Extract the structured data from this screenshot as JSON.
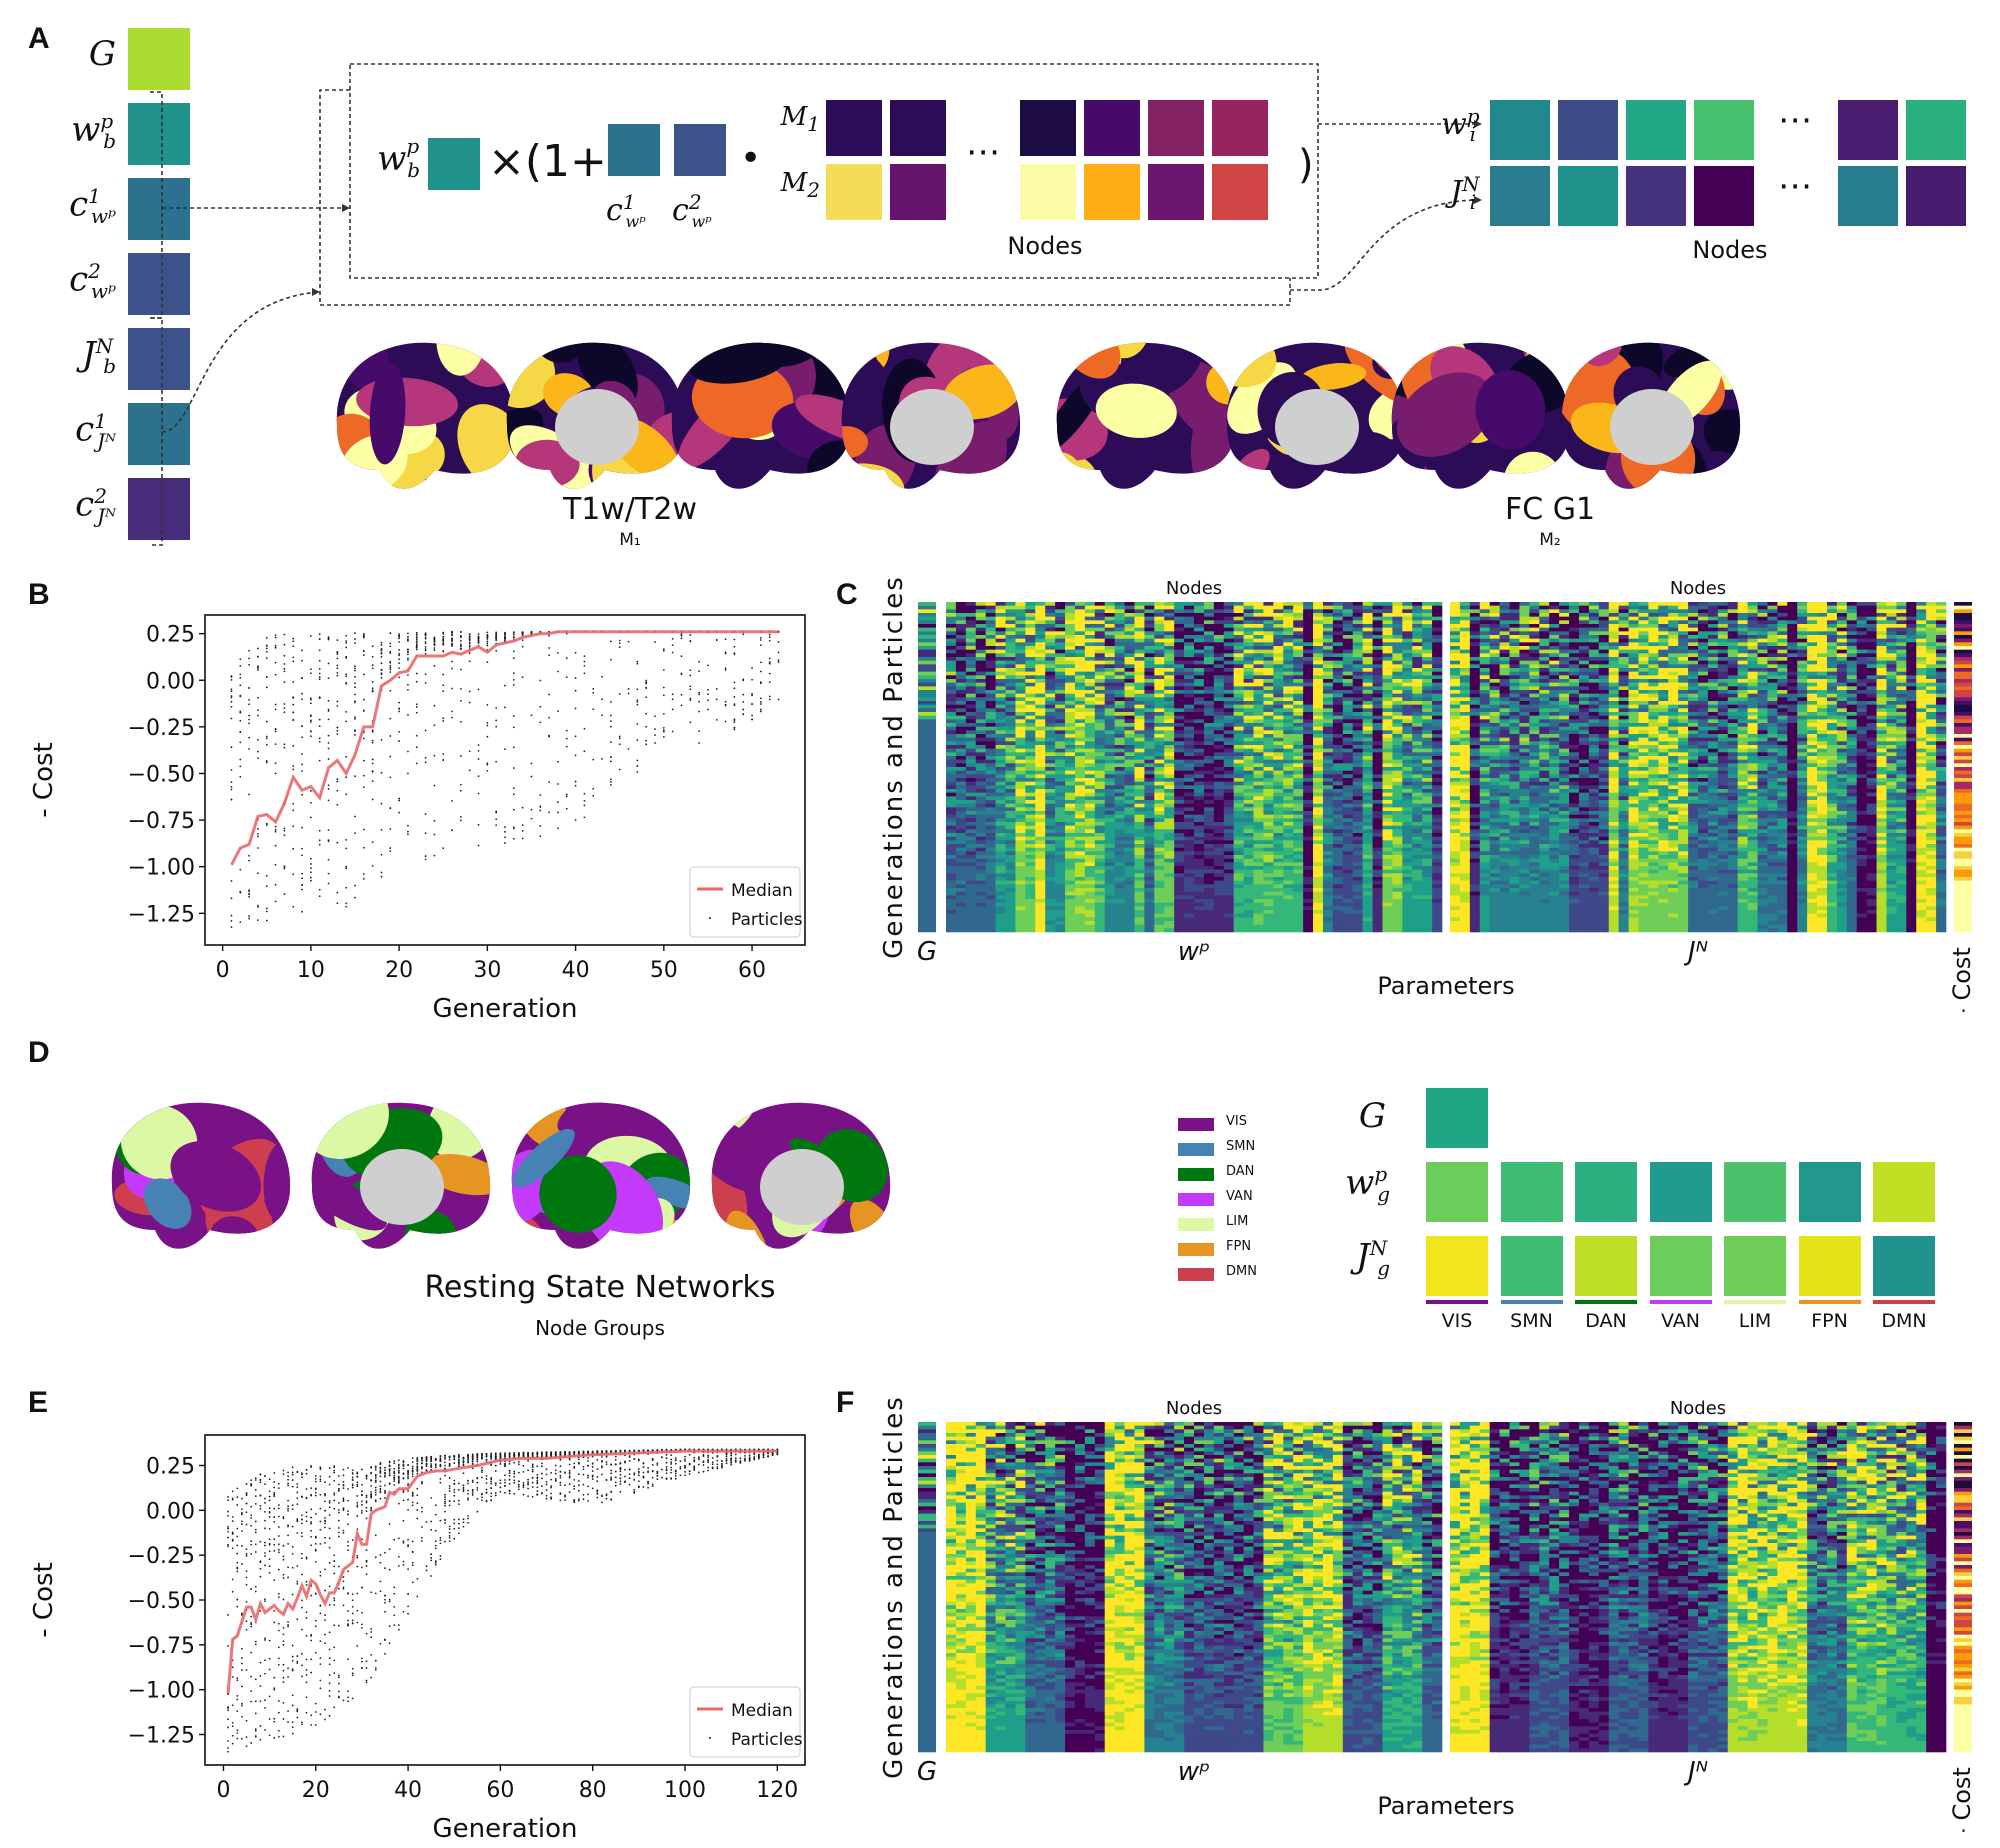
{
  "panels": {
    "A": {
      "letter": "A",
      "params": [
        {
          "label": "G",
          "sub": "",
          "sup": "",
          "color": "#addc30"
        },
        {
          "label": "w",
          "sub": "b",
          "sup": "p",
          "color": "#21918c"
        },
        {
          "label": "c",
          "sub": "wᵖ",
          "sup": "1",
          "color": "#2c728e"
        },
        {
          "label": "c",
          "sub": "wᵖ",
          "sup": "2",
          "color": "#3b528b"
        },
        {
          "label": "J",
          "sub": "b",
          "sup": "N",
          "color": "#3b528b"
        },
        {
          "label": "c",
          "sub": "Jᴺ",
          "sup": "1",
          "color": "#2c728e"
        },
        {
          "label": "c",
          "sub": "Jᴺ",
          "sup": "2",
          "color": "#472c7a"
        }
      ],
      "equation": {
        "wb_label": "w",
        "wb_sub": "b",
        "wb_sup": "p",
        "wb_color": "#21918c",
        "times_text": "×(1+",
        "c1_color": "#2c728e",
        "c2_color": "#3b528b",
        "c1_label": "c",
        "c1_sup": "1",
        "c1_sub": "wᵖ",
        "c2_label": "c",
        "c2_sup": "2",
        "c2_sub": "wᵖ",
        "dot": "•",
        "m1_label": "M",
        "m1_sub": "1",
        "m2_label": "M",
        "m2_sub": "2",
        "m1_colors": [
          "#2c0b57",
          "#2c0b57",
          "#1d0c44",
          "#460b6a",
          "#832163",
          "#952461"
        ],
        "m2_colors": [
          "#f4dd56",
          "#65156e",
          "#fbfba5",
          "#fcae12",
          "#6b176e",
          "#d04545"
        ],
        "ellipsis": "⋯",
        "close_paren": ")",
        "nodes_label": "Nodes"
      },
      "output": {
        "wi_label": "w",
        "wi_sub": "i",
        "wi_sup": "p",
        "ji_label": "J",
        "ji_sub": "i",
        "ji_sup": "N",
        "wi_colors": [
          "#21898d",
          "#3d4b88",
          "#22a884",
          "#48c16e",
          "#481d6f",
          "#2ab07f"
        ],
        "ji_colors": [
          "#287c8e",
          "#20938c",
          "#46337e",
          "#440154",
          "#277f8e",
          "#471c6e"
        ],
        "ellipsis": "⋯",
        "nodes_label": "Nodes"
      },
      "maps": [
        {
          "title": "T1w/T2w",
          "subtitle": "M₁"
        },
        {
          "title": "FC G1",
          "subtitle": "M₂"
        }
      ]
    },
    "B": {
      "letter": "B"
    },
    "C": {
      "letter": "C",
      "nodes_left": "Nodes",
      "nodes_right": "Nodes",
      "ylabel": "Generations and Particles",
      "g_label": "G",
      "wp_label": "wᵖ",
      "jn_label": "Jᴺ",
      "xlabel": "Parameters",
      "cost_label": "- Cost"
    },
    "D": {
      "letter": "D",
      "title": "Resting State Networks",
      "subtitle": "Node Groups",
      "networks": [
        {
          "name": "VIS",
          "color": "#781286"
        },
        {
          "name": "SMN",
          "color": "#4682b4"
        },
        {
          "name": "DAN",
          "color": "#00760e"
        },
        {
          "name": "VAN",
          "color": "#c43afa"
        },
        {
          "name": "LIM",
          "color": "#dcf8a4"
        },
        {
          "name": "FPN",
          "color": "#e69422"
        },
        {
          "name": "DMN",
          "color": "#cd3e4e"
        }
      ],
      "group_params": {
        "g_label": "G",
        "g_color": "#21a685",
        "wg_label": "w",
        "wg_sub": "g",
        "wg_sup": "p",
        "jg_label": "J",
        "jg_sub": "g",
        "jg_sup": "N",
        "wg_colors": [
          "#6ccd5a",
          "#3dbc74",
          "#2aaf7f",
          "#21998b",
          "#4ac16d",
          "#21988b",
          "#c2df23"
        ],
        "jg_colors": [
          "#f1e51d",
          "#3dbc74",
          "#bddf26",
          "#6ccd5a",
          "#6ece58",
          "#e5e419",
          "#20938c"
        ]
      }
    },
    "E": {
      "letter": "E"
    },
    "F": {
      "letter": "F",
      "nodes_left": "Nodes",
      "nodes_right": "Nodes",
      "ylabel": "Generations and Particles",
      "g_label": "G",
      "wp_label": "wᵖ",
      "jn_label": "Jᴺ",
      "xlabel": "Parameters",
      "cost_label": "- Cost"
    }
  },
  "chart_data": [
    {
      "id": "B",
      "type": "scatter",
      "title": "",
      "xlabel": "Generation",
      "ylabel": "- Cost",
      "xlim": [
        -2,
        66
      ],
      "ylim": [
        -1.42,
        0.35
      ],
      "xticks": [
        0,
        10,
        20,
        30,
        40,
        50,
        60
      ],
      "yticks": [
        0.25,
        0.0,
        -0.25,
        -0.5,
        -0.75,
        -1.0,
        -1.25
      ],
      "ytick_labels": [
        "0.25",
        "0.00",
        "−0.25",
        "−0.50",
        "−0.75",
        "−1.00",
        "−1.25"
      ],
      "legend": {
        "position": "lower-right",
        "entries": [
          "Median",
          "Particles"
        ]
      },
      "median_color": "#e8686c",
      "series": [
        {
          "name": "Median",
          "x": [
            1,
            2,
            3,
            4,
            5,
            6,
            7,
            8,
            9,
            10,
            11,
            12,
            13,
            14,
            15,
            16,
            17,
            18,
            19,
            20,
            21,
            22,
            23,
            24,
            25,
            26,
            27,
            28,
            29,
            30,
            31,
            32,
            33,
            34,
            35,
            36,
            37,
            38,
            39,
            40,
            45,
            50,
            55,
            60,
            63
          ],
          "y": [
            -0.99,
            -0.9,
            -0.88,
            -0.73,
            -0.72,
            -0.76,
            -0.66,
            -0.52,
            -0.59,
            -0.57,
            -0.63,
            -0.47,
            -0.43,
            -0.5,
            -0.4,
            -0.25,
            -0.25,
            -0.03,
            0.0,
            0.04,
            0.05,
            0.13,
            0.13,
            0.13,
            0.13,
            0.15,
            0.14,
            0.16,
            0.18,
            0.15,
            0.19,
            0.2,
            0.21,
            0.23,
            0.24,
            0.25,
            0.25,
            0.26,
            0.26,
            0.26,
            0.26,
            0.26,
            0.26,
            0.26,
            0.26
          ]
        },
        {
          "name": "Particles",
          "description": "vertical clusters of points per generation; spread from about -1.33 to 0.25 early, converging to ~0.26 by generation 40+",
          "envelope_x": [
            1,
            5,
            10,
            15,
            20,
            25,
            30,
            35,
            40,
            50,
            60
          ],
          "envelope_min": [
            -1.33,
            -1.3,
            -1.23,
            -1.22,
            -0.96,
            -0.97,
            -0.96,
            -0.86,
            -0.79,
            -0.41,
            -0.24
          ],
          "envelope_max": [
            0.1,
            0.24,
            0.26,
            0.26,
            0.26,
            0.26,
            0.26,
            0.26,
            0.26,
            0.26,
            0.26
          ]
        }
      ]
    },
    {
      "id": "E",
      "type": "scatter",
      "title": "",
      "xlabel": "Generation",
      "ylabel": "- Cost",
      "xlim": [
        -4,
        126
      ],
      "ylim": [
        -1.42,
        0.42
      ],
      "xticks": [
        0,
        20,
        40,
        60,
        80,
        100,
        120
      ],
      "yticks": [
        0.25,
        0.0,
        -0.25,
        -0.5,
        -0.75,
        -1.0,
        -1.25
      ],
      "ytick_labels": [
        "0.25",
        "0.00",
        "−0.25",
        "−0.50",
        "−0.75",
        "−1.00",
        "−1.25"
      ],
      "legend": {
        "position": "lower-right",
        "entries": [
          "Median",
          "Particles"
        ]
      },
      "median_color": "#e8686c",
      "series": [
        {
          "name": "Median",
          "x": [
            1,
            2,
            3,
            4,
            5,
            6,
            7,
            8,
            9,
            10,
            11,
            12,
            13,
            14,
            15,
            16,
            17,
            18,
            19,
            20,
            21,
            22,
            23,
            24,
            25,
            26,
            27,
            28,
            29,
            30,
            31,
            32,
            33,
            34,
            35,
            36,
            37,
            38,
            39,
            40,
            42,
            44,
            46,
            48,
            50,
            55,
            60,
            65,
            70,
            75,
            80,
            90,
            100,
            110,
            120
          ],
          "y": [
            -1.02,
            -0.72,
            -0.7,
            -0.62,
            -0.54,
            -0.54,
            -0.61,
            -0.52,
            -0.57,
            -0.55,
            -0.53,
            -0.56,
            -0.58,
            -0.52,
            -0.55,
            -0.49,
            -0.42,
            -0.48,
            -0.39,
            -0.41,
            -0.47,
            -0.52,
            -0.46,
            -0.46,
            -0.4,
            -0.33,
            -0.31,
            -0.29,
            -0.13,
            -0.19,
            -0.19,
            -0.02,
            0.0,
            0.01,
            0.02,
            0.1,
            0.09,
            0.12,
            0.12,
            0.12,
            0.19,
            0.21,
            0.22,
            0.22,
            0.23,
            0.25,
            0.28,
            0.29,
            0.29,
            0.3,
            0.31,
            0.32,
            0.33,
            0.33,
            0.33
          ]
        },
        {
          "name": "Particles",
          "description": "vertical clusters of points per generation; spread from about -1.35 to 0.25 early, converging to ~0.33 by generation 100+",
          "envelope_x": [
            1,
            10,
            20,
            30,
            40,
            50,
            60,
            80,
            100,
            120
          ],
          "envelope_min": [
            -1.35,
            -1.28,
            -1.22,
            -1.03,
            -0.6,
            -0.16,
            0.1,
            0.02,
            0.19,
            0.31
          ],
          "envelope_max": [
            0.1,
            0.23,
            0.25,
            0.25,
            0.29,
            0.31,
            0.32,
            0.33,
            0.34,
            0.34
          ]
        }
      ]
    },
    {
      "id": "C",
      "type": "heatmap",
      "title": "",
      "xlabel": "Parameters",
      "ylabel": "Generations and Particles",
      "column_groups": [
        {
          "name": "G",
          "columns": 1
        },
        {
          "name": "wᵖ",
          "header": "Nodes",
          "columns": 100
        },
        {
          "name": "Jᴺ",
          "header": "Nodes",
          "columns": 100
        },
        {
          "name": "- Cost",
          "columns": 1
        }
      ],
      "colormap": "viridis",
      "cost_colormap": "inferno",
      "note": "rows are ordered by generation (top = earliest); later rows converge to stable per-node patterns"
    },
    {
      "id": "F",
      "type": "heatmap",
      "title": "",
      "xlabel": "Parameters",
      "ylabel": "Generations and Particles",
      "column_groups": [
        {
          "name": "G",
          "columns": 1
        },
        {
          "name": "wᵖ",
          "header": "Nodes",
          "columns": 100
        },
        {
          "name": "Jᴺ",
          "header": "Nodes",
          "columns": 100
        },
        {
          "name": "- Cost",
          "columns": 1
        }
      ],
      "colormap": "viridis",
      "cost_colormap": "inferno",
      "note": "parameters are shared within 7 resting-state node groups, producing blocky column structure"
    }
  ]
}
